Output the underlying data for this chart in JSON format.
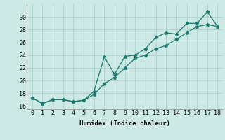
{
  "xlabel": "Humidex (Indice chaleur)",
  "line1_x": [
    0,
    1,
    2,
    3,
    4,
    5,
    6,
    7,
    8,
    9,
    10,
    11,
    12,
    13,
    14,
    15,
    16,
    17,
    18
  ],
  "line1_y": [
    17.3,
    16.4,
    17.0,
    17.0,
    16.7,
    16.9,
    18.3,
    23.7,
    21.0,
    23.8,
    24.0,
    25.0,
    26.8,
    27.5,
    27.3,
    29.0,
    29.0,
    30.8,
    28.5
  ],
  "line2_x": [
    0,
    1,
    2,
    3,
    4,
    5,
    6,
    7,
    8,
    9,
    10,
    11,
    12,
    13,
    14,
    15,
    16,
    17,
    18
  ],
  "line2_y": [
    17.3,
    16.4,
    17.0,
    17.0,
    16.7,
    16.9,
    17.8,
    19.5,
    20.5,
    22.0,
    23.5,
    24.0,
    25.0,
    25.5,
    26.5,
    27.5,
    28.5,
    28.8,
    28.5
  ],
  "line_color": "#1a7a6e",
  "bg_color": "#cce9e5",
  "grid_color": "#b0d5d0",
  "ylim": [
    15.5,
    32.0
  ],
  "xlim": [
    -0.5,
    18.5
  ],
  "yticks": [
    16,
    18,
    20,
    22,
    24,
    26,
    28,
    30
  ],
  "xticks": [
    0,
    1,
    2,
    3,
    4,
    5,
    6,
    7,
    8,
    9,
    10,
    11,
    12,
    13,
    14,
    15,
    16,
    17,
    18
  ]
}
